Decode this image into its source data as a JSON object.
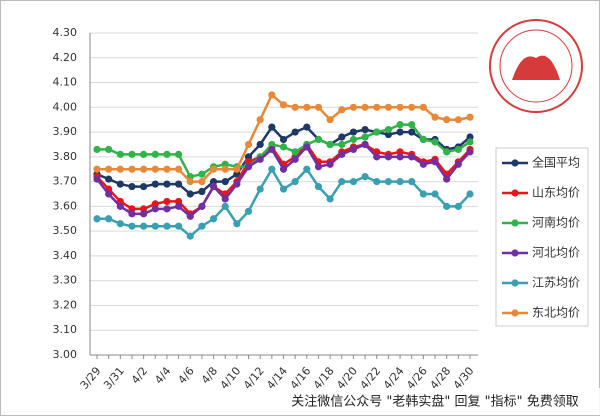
{
  "chart_data": {
    "type": "line",
    "categories": [
      "3/29",
      null,
      "3/31",
      null,
      "4/2",
      null,
      "4/4",
      null,
      "4/6",
      null,
      "4/8",
      null,
      "4/10",
      null,
      "4/12",
      null,
      "4/14",
      null,
      "4/16",
      null,
      "4/18",
      null,
      "4/20",
      null,
      "4/22",
      null,
      "4/24",
      null,
      "4/26",
      null,
      "4/28",
      null,
      "4/30"
    ],
    "series": [
      {
        "name": "全国平均",
        "color": "#1f3864",
        "values": [
          3.73,
          3.71,
          3.69,
          3.68,
          3.68,
          3.69,
          3.69,
          3.69,
          3.65,
          3.66,
          3.7,
          3.7,
          3.73,
          3.8,
          3.85,
          3.92,
          3.87,
          3.9,
          3.92,
          3.87,
          3.85,
          3.88,
          3.9,
          3.91,
          3.9,
          3.89,
          3.9,
          3.9,
          3.87,
          3.87,
          3.83,
          3.84,
          3.88
        ]
      },
      {
        "name": "山东均价",
        "color": "#e8151b",
        "values": [
          3.72,
          3.67,
          3.62,
          3.59,
          3.59,
          3.61,
          3.62,
          3.62,
          3.57,
          3.6,
          3.68,
          3.65,
          3.7,
          3.78,
          3.8,
          3.84,
          3.77,
          3.8,
          3.85,
          3.78,
          3.78,
          3.82,
          3.84,
          3.85,
          3.82,
          3.81,
          3.82,
          3.81,
          3.78,
          3.79,
          3.73,
          3.78,
          3.83
        ]
      },
      {
        "name": "河南均价",
        "color": "#2fb34a",
        "values": [
          3.83,
          3.83,
          3.81,
          3.81,
          3.81,
          3.81,
          3.81,
          3.81,
          3.72,
          3.73,
          3.76,
          3.77,
          3.76,
          3.76,
          3.8,
          3.85,
          3.84,
          3.82,
          3.85,
          3.87,
          3.85,
          3.85,
          3.87,
          3.88,
          3.9,
          3.91,
          3.93,
          3.93,
          3.87,
          3.86,
          3.82,
          3.83,
          3.86
        ]
      },
      {
        "name": "河北均价",
        "color": "#7030a0",
        "values": [
          3.71,
          3.65,
          3.6,
          3.57,
          3.57,
          3.59,
          3.59,
          3.6,
          3.56,
          3.6,
          3.68,
          3.63,
          3.69,
          3.76,
          3.79,
          3.83,
          3.75,
          3.79,
          3.84,
          3.76,
          3.77,
          3.81,
          3.83,
          3.85,
          3.8,
          3.8,
          3.8,
          3.8,
          3.77,
          3.78,
          3.71,
          3.77,
          3.82
        ]
      },
      {
        "name": "江苏均价",
        "color": "#3a9fb0",
        "values": [
          3.55,
          3.55,
          3.53,
          3.52,
          3.52,
          3.52,
          3.52,
          3.52,
          3.48,
          3.52,
          3.55,
          3.6,
          3.53,
          3.58,
          3.67,
          3.75,
          3.67,
          3.7,
          3.75,
          3.68,
          3.63,
          3.7,
          3.7,
          3.72,
          3.7,
          3.7,
          3.7,
          3.7,
          3.65,
          3.65,
          3.6,
          3.6,
          3.65
        ]
      },
      {
        "name": "东北均价",
        "color": "#e8893a",
        "values": [
          3.75,
          3.75,
          3.75,
          3.75,
          3.75,
          3.75,
          3.75,
          3.75,
          3.7,
          3.7,
          3.75,
          3.75,
          3.75,
          3.85,
          3.95,
          4.05,
          4.01,
          4.0,
          4.0,
          4.0,
          3.95,
          3.99,
          4.0,
          4.0,
          4.0,
          4.0,
          4.0,
          4.0,
          4.0,
          3.96,
          3.95,
          3.95,
          3.96
        ]
      }
    ],
    "ylim": [
      3.0,
      4.3
    ],
    "yticks": [
      {
        "value": 3.0,
        "label": "3.00"
      },
      {
        "value": 3.1,
        "label": "3.10"
      },
      {
        "value": 3.2,
        "label": "3.20"
      },
      {
        "value": 3.3,
        "label": "3.30"
      },
      {
        "value": 3.4,
        "label": "3.40"
      },
      {
        "value": 3.5,
        "label": "3.50"
      },
      {
        "value": 3.6,
        "label": "3.60"
      },
      {
        "value": 3.7,
        "label": "3.70"
      },
      {
        "value": 3.8,
        "label": "3.80"
      },
      {
        "value": 3.9,
        "label": "3.90"
      },
      {
        "value": 4.0,
        "label": "4.00"
      },
      {
        "value": 4.1,
        "label": "4.10"
      },
      {
        "value": 4.2,
        "label": "4.20"
      },
      {
        "value": 4.3,
        "label": "4.30"
      }
    ],
    "grid": true,
    "legend": "right",
    "watermark": "关注微信公众号 \"老韩实盘\" 回复 \"指标\" 免费领取"
  }
}
